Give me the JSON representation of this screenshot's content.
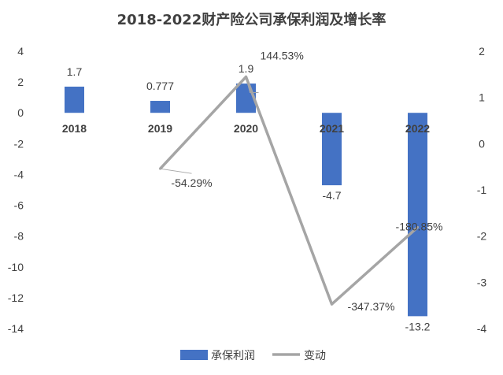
{
  "chart_data": {
    "type": "bar",
    "title": "2018-2022财产险公司承保利润及增长率",
    "categories": [
      "2018",
      "2019",
      "2020",
      "2021",
      "2022"
    ],
    "series": [
      {
        "name": "承保利润",
        "type": "bar",
        "axis": "left",
        "color": "#4472C4",
        "values": [
          1.7,
          0.777,
          1.9,
          -4.7,
          -13.2
        ],
        "labels": [
          "1.7",
          "0.777",
          "1.9",
          "-4.7",
          "-13.2"
        ]
      },
      {
        "name": "变动",
        "type": "line",
        "axis": "right",
        "color": "#A5A5A5",
        "values": [
          null,
          -0.5429,
          1.4453,
          -3.4737,
          -1.8085
        ],
        "labels": [
          "",
          "-54.29%",
          "144.53%",
          "-347.37%",
          "-180.85%"
        ]
      }
    ],
    "y_left": {
      "lim": [
        -14,
        4
      ],
      "ticks": [
        4,
        2,
        0,
        -2,
        -4,
        -6,
        -8,
        -10,
        -12,
        -14
      ]
    },
    "y_right": {
      "lim": [
        -4,
        2
      ],
      "ticks": [
        2,
        1,
        0,
        -1,
        -2,
        -3,
        -4
      ]
    },
    "legend": "bottom",
    "grid": false
  }
}
